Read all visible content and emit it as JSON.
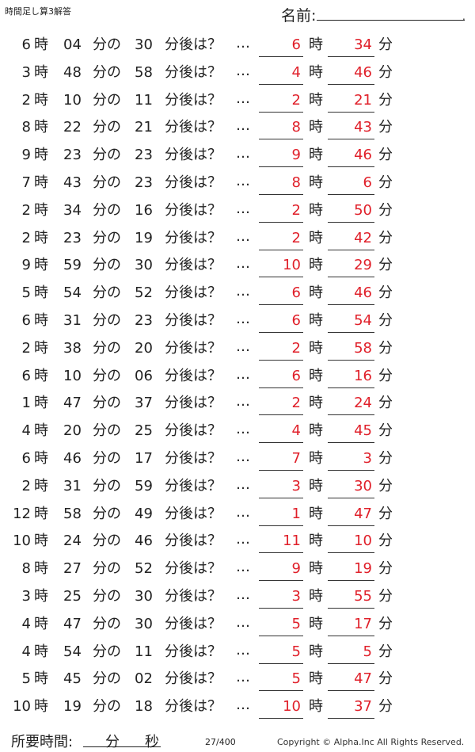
{
  "header": {
    "title": "時間足し算3解答",
    "name_label": "名前:",
    "name_dot": "."
  },
  "labels": {
    "hour": "時",
    "minute_of": "分の",
    "after": "分後は？",
    "dots": "…",
    "minute": "分"
  },
  "rows": [
    {
      "h": "6",
      "m": "04",
      "add": "30",
      "ah": "6",
      "am": "34"
    },
    {
      "h": "3",
      "m": "48",
      "add": "58",
      "ah": "4",
      "am": "46"
    },
    {
      "h": "2",
      "m": "10",
      "add": "11",
      "ah": "2",
      "am": "21"
    },
    {
      "h": "8",
      "m": "22",
      "add": "21",
      "ah": "8",
      "am": "43"
    },
    {
      "h": "9",
      "m": "23",
      "add": "23",
      "ah": "9",
      "am": "46"
    },
    {
      "h": "7",
      "m": "43",
      "add": "23",
      "ah": "8",
      "am": "6"
    },
    {
      "h": "2",
      "m": "34",
      "add": "16",
      "ah": "2",
      "am": "50"
    },
    {
      "h": "2",
      "m": "23",
      "add": "19",
      "ah": "2",
      "am": "42"
    },
    {
      "h": "9",
      "m": "59",
      "add": "30",
      "ah": "10",
      "am": "29"
    },
    {
      "h": "5",
      "m": "54",
      "add": "52",
      "ah": "6",
      "am": "46"
    },
    {
      "h": "6",
      "m": "31",
      "add": "23",
      "ah": "6",
      "am": "54"
    },
    {
      "h": "2",
      "m": "38",
      "add": "20",
      "ah": "2",
      "am": "58"
    },
    {
      "h": "6",
      "m": "10",
      "add": "06",
      "ah": "6",
      "am": "16"
    },
    {
      "h": "1",
      "m": "47",
      "add": "37",
      "ah": "2",
      "am": "24"
    },
    {
      "h": "4",
      "m": "20",
      "add": "25",
      "ah": "4",
      "am": "45"
    },
    {
      "h": "6",
      "m": "46",
      "add": "17",
      "ah": "7",
      "am": "3"
    },
    {
      "h": "2",
      "m": "31",
      "add": "59",
      "ah": "3",
      "am": "30"
    },
    {
      "h": "12",
      "m": "58",
      "add": "49",
      "ah": "1",
      "am": "47"
    },
    {
      "h": "10",
      "m": "24",
      "add": "46",
      "ah": "11",
      "am": "10"
    },
    {
      "h": "8",
      "m": "27",
      "add": "52",
      "ah": "9",
      "am": "19"
    },
    {
      "h": "3",
      "m": "25",
      "add": "30",
      "ah": "3",
      "am": "55"
    },
    {
      "h": "4",
      "m": "47",
      "add": "30",
      "ah": "5",
      "am": "17"
    },
    {
      "h": "4",
      "m": "54",
      "add": "11",
      "ah": "5",
      "am": "5"
    },
    {
      "h": "5",
      "m": "45",
      "add": "02",
      "ah": "5",
      "am": "47"
    },
    {
      "h": "10",
      "m": "19",
      "add": "18",
      "ah": "10",
      "am": "37"
    }
  ],
  "footer": {
    "time_label": "所要時間:",
    "fun": "分",
    "byo": "秒",
    "page": "27/400",
    "copyright": "Copyright ©  Alpha.Inc All Rights Reserved."
  },
  "colors": {
    "answer": "#e0202a"
  }
}
